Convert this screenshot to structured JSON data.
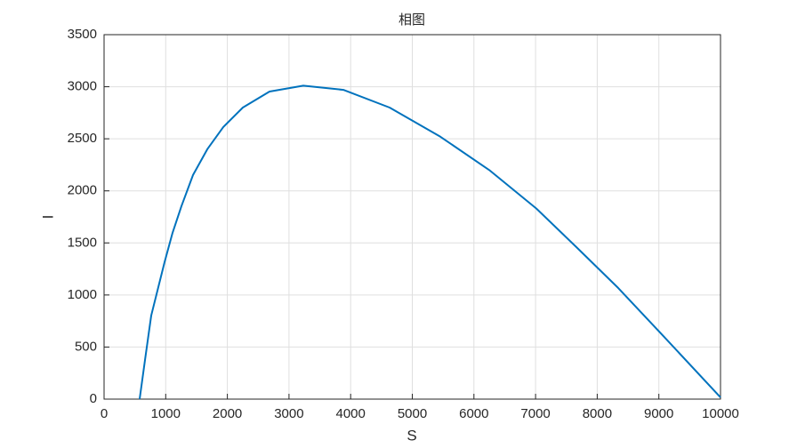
{
  "chart_data": {
    "type": "line",
    "title": "相图",
    "x_label": "S",
    "y_label": "I",
    "x": [
      577,
      664,
      765,
      981,
      1111,
      1255,
      1443,
      1674,
      1934,
      2251,
      2684,
      3232,
      3882,
      4632,
      5455,
      6248,
      7013,
      7662,
      8341,
      9019,
      10000
    ],
    "series": [
      {
        "color": "#0072bd",
        "values": [
          0,
          376,
          803,
          1315,
          1597,
          1853,
          2152,
          2399,
          2613,
          2800,
          2954,
          3010,
          2970,
          2800,
          2520,
          2200,
          1830,
          1460,
          1067,
          640,
          17
        ]
      }
    ],
    "xlim": [
      0,
      10000
    ],
    "xticks": [
      0,
      1000,
      2000,
      3000,
      4000,
      5000,
      6000,
      7000,
      8000,
      9000,
      10000
    ],
    "ylim": [
      0,
      3500
    ],
    "yticks": [
      0,
      500,
      1000,
      1500,
      2000,
      2500,
      3000,
      3500
    ],
    "grid": true
  }
}
